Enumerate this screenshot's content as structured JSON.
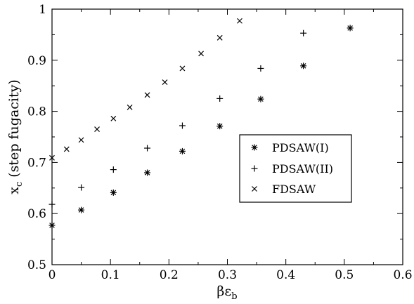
{
  "chart_data": {
    "type": "scatter",
    "title": "",
    "xlabel": "βε",
    "xlabel_sub": "b",
    "ylabel": "x",
    "ylabel_sub": "c",
    "ylabel_suffix": " (step fugacity)",
    "xlim": [
      0,
      0.6
    ],
    "ylim": [
      0.5,
      1.0
    ],
    "xticks": [
      "0",
      "0.1",
      "0.2",
      "0.3",
      "0.4",
      "0.5",
      "0.6"
    ],
    "yticks": [
      "0.5",
      "0.6",
      "0.7",
      "0.8",
      "0.9",
      "1"
    ],
    "grid": false,
    "legend_position": "center-right",
    "series": [
      {
        "name": "PDSAW(I)",
        "marker": "asterisk",
        "x": [
          0,
          0.05,
          0.105,
          0.163,
          0.223,
          0.287,
          0.357,
          0.43,
          0.51
        ],
        "y": [
          0.577,
          0.607,
          0.641,
          0.68,
          0.722,
          0.771,
          0.824,
          0.889,
          0.963
        ]
      },
      {
        "name": "PDSAW(II)",
        "marker": "plus",
        "x": [
          0,
          0.05,
          0.105,
          0.163,
          0.223,
          0.287,
          0.357,
          0.43
        ],
        "y": [
          0.618,
          0.651,
          0.686,
          0.728,
          0.772,
          0.825,
          0.884,
          0.953
        ]
      },
      {
        "name": "FDSAW",
        "marker": "cross",
        "x": [
          0,
          0.025,
          0.05,
          0.077,
          0.105,
          0.133,
          0.163,
          0.193,
          0.223,
          0.255,
          0.287,
          0.321
        ],
        "y": [
          0.709,
          0.726,
          0.744,
          0.765,
          0.786,
          0.808,
          0.832,
          0.857,
          0.884,
          0.913,
          0.944,
          0.977
        ]
      }
    ]
  }
}
